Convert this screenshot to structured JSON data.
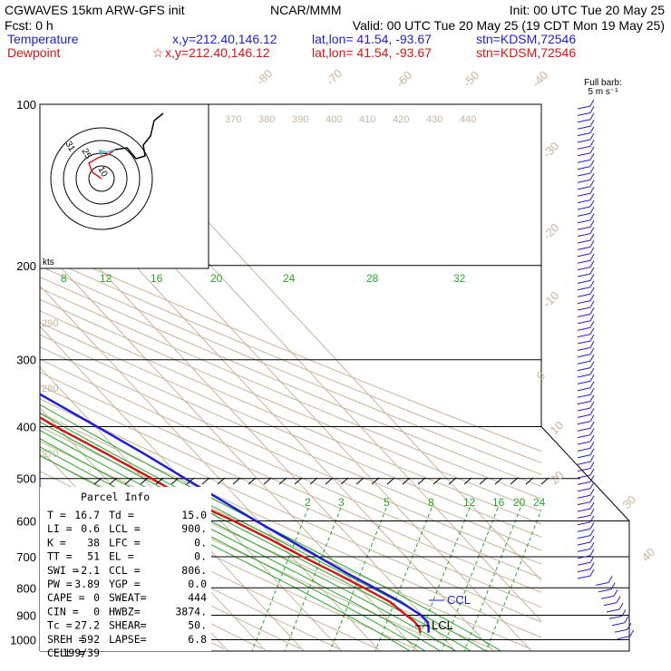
{
  "header": {
    "line1_left": "CGWAVES 15km ARW-GFS init",
    "line1_mid": "NCAR/MMM",
    "line1_right": "Init: 00 UTC Tue 20 May 25",
    "line2_left": "Fcst:     0 h",
    "line2_right": "Valid: 00 UTC Tue 20 May 25 (19 CDT Mon 19 May 25)",
    "temp_label": "Temperature",
    "temp_xy": "x,y=212.40,146.12",
    "temp_latlon": "lat,lon= 41.54, -93.67",
    "temp_stn": "stn=KDSM,72546",
    "dew_label": "Dewpoint",
    "dew_star": "☆",
    "dew_xy": "x,y=212.40,146.12",
    "dew_latlon": "lat,lon= 41.54, -93.67",
    "dew_stn": "stn=KDSM,72546"
  },
  "barb_legend": {
    "line1": "Full barb:",
    "line2": "5 m s⁻¹"
  },
  "hodograph": {
    "units": "kts",
    "ring_labels": [
      "10",
      "25",
      "31"
    ]
  },
  "parcel_info": {
    "title": "Parcel Info",
    "rows": [
      [
        "T  =",
        "16.7",
        "Td =",
        "15.0"
      ],
      [
        "LI =",
        "0.6",
        "LCL =",
        "900."
      ],
      [
        "K  =",
        "38",
        "LFC =",
        "0."
      ],
      [
        "TT =",
        "51",
        "EL  =",
        "0."
      ],
      [
        "SWI =",
        "-2.1",
        "CCL =",
        "806."
      ],
      [
        "PW =",
        "3.89",
        "YGP =",
        "0.0"
      ],
      [
        "CAPE =",
        "0",
        "SWEAT=",
        "444"
      ],
      [
        "CIN =",
        "0",
        "HWBZ=",
        "3874."
      ],
      [
        "Tc =",
        "27.2",
        "SHEAR=",
        "50."
      ],
      [
        "SREH =",
        "592",
        "LAPSE=",
        "6.8"
      ],
      [
        "CELL =",
        "199/39",
        "",
        ""
      ]
    ]
  },
  "level_labels": {
    "ccl": "CCL",
    "lcl": "LCL"
  },
  "colors": {
    "temperature": "#1f1fd0",
    "dewpoint": "#d01818",
    "isotherm": "#c7b49a",
    "mixing_ratio": "#2aa52a",
    "isobar": "#000000"
  },
  "chart_data": {
    "type": "line",
    "title": "",
    "y_axis": {
      "label": "",
      "scale": "log",
      "ticks": [
        100,
        200,
        300,
        400,
        500,
        600,
        700,
        800,
        900,
        1000
      ],
      "range": [
        1000,
        100
      ]
    },
    "isotherm_labels_top": [
      "-80",
      "-70",
      "-60",
      "-50",
      "-40"
    ],
    "isotherm_labels_right": [
      "-30",
      "-20",
      "-10",
      "0",
      "10",
      "20",
      "30",
      "40"
    ],
    "theta_labels": [
      "370",
      "380",
      "390",
      "400",
      "410",
      "420",
      "430",
      "440"
    ],
    "theta_labels_left": [
      "290",
      "280",
      "270"
    ],
    "mixing_ratio_labels_upper": [
      "8",
      "12",
      "16",
      "20",
      "24",
      "28",
      "32"
    ],
    "mixing_ratio_labels_lower": [
      "2",
      "3",
      "5",
      "8",
      "12",
      "16",
      "20",
      "24"
    ],
    "series": [
      {
        "name": "Temperature",
        "points": [
          [
            970,
            17.4
          ],
          [
            950,
            18.6
          ],
          [
            925,
            19.8
          ],
          [
            900,
            19.7
          ],
          [
            850,
            17.6
          ],
          [
            800,
            14.2
          ],
          [
            750,
            10.4
          ],
          [
            700,
            6.9
          ],
          [
            650,
            3.3
          ],
          [
            600,
            -0.7
          ],
          [
            550,
            -4.7
          ],
          [
            500,
            -9.0
          ],
          [
            450,
            -13.7
          ],
          [
            400,
            -19.5
          ],
          [
            350,
            -26.3
          ],
          [
            300,
            -34.2
          ],
          [
            250,
            -43.4
          ],
          [
            220,
            -49.6
          ],
          [
            200,
            -54.9
          ],
          [
            180,
            -60.1
          ],
          [
            170,
            -62.6
          ],
          [
            150,
            -64.9
          ],
          [
            130,
            -66.7
          ],
          [
            110,
            -68.1
          ],
          [
            100,
            -69.3
          ]
        ]
      },
      {
        "name": "Dewpoint",
        "points": [
          [
            970,
            15.2
          ],
          [
            950,
            16.2
          ],
          [
            925,
            16.4
          ],
          [
            900,
            15.8
          ],
          [
            850,
            14.8
          ],
          [
            800,
            11.4
          ],
          [
            750,
            7.4
          ],
          [
            700,
            2.9
          ],
          [
            650,
            -1.4
          ],
          [
            600,
            -6.6
          ],
          [
            550,
            -13.2
          ],
          [
            500,
            -17.8
          ],
          [
            450,
            -23.6
          ],
          [
            400,
            -30.5
          ],
          [
            350,
            -36.6
          ],
          [
            300,
            -43.2
          ],
          [
            250,
            -51.3
          ],
          [
            220,
            -57.0
          ],
          [
            200,
            -62.4
          ],
          [
            180,
            -66.0
          ],
          [
            160,
            -68.1
          ],
          [
            145,
            -73.3
          ],
          [
            130,
            -86.9
          ],
          [
            120,
            -88.5
          ],
          [
            110,
            -85.6
          ],
          [
            100,
            -83.1
          ]
        ]
      }
    ]
  }
}
